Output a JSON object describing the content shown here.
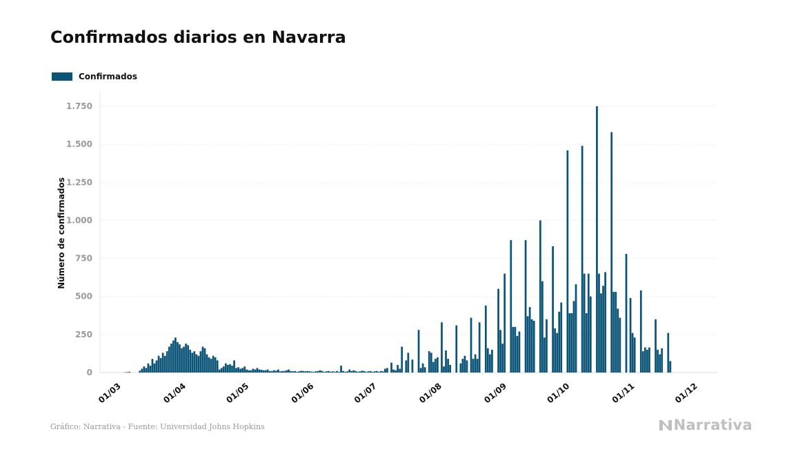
{
  "title": "Confirmados diarios en Navarra",
  "legend": {
    "label": "Confirmados",
    "color": "#0b5477"
  },
  "footer": {
    "source": "Gráfico: Narrativa - Fuente: Universidad Johns Hopkins",
    "brand": "Narrativa"
  },
  "chart_data": {
    "type": "bar",
    "title": "Confirmados diarios en Navarra",
    "xlabel": "",
    "ylabel": "Número de confirmados",
    "ylim": [
      0,
      1750
    ],
    "yticks": [
      0,
      250,
      500,
      750,
      1000,
      1250,
      1500,
      1750
    ],
    "ytick_labels": [
      "0",
      "250",
      "500",
      "750",
      "1.000",
      "1.250",
      "1.500",
      "1.750"
    ],
    "grid": "horizontal",
    "legend_position": "top-left",
    "x_start": "2020-02-24",
    "xtick_labels": [
      "01/03",
      "01/04",
      "01/05",
      "01/06",
      "01/07",
      "01/08",
      "01/09",
      "01/10",
      "01/11",
      "01/12"
    ],
    "series": [
      {
        "name": "Confirmados",
        "color": "#0b5477",
        "values": [
          0,
          0,
          0,
          0,
          0,
          0,
          0,
          0,
          0,
          0,
          0,
          2,
          3,
          5,
          0,
          0,
          0,
          0,
          12,
          25,
          40,
          30,
          60,
          45,
          90,
          60,
          80,
          110,
          95,
          130,
          110,
          140,
          170,
          190,
          210,
          230,
          200,
          185,
          160,
          170,
          190,
          180,
          150,
          130,
          140,
          120,
          110,
          140,
          170,
          160,
          120,
          100,
          90,
          110,
          100,
          80,
          20,
          30,
          40,
          60,
          50,
          55,
          45,
          80,
          30,
          35,
          25,
          30,
          40,
          20,
          15,
          15,
          25,
          20,
          30,
          20,
          18,
          15,
          15,
          20,
          10,
          10,
          15,
          12,
          20,
          8,
          10,
          10,
          15,
          20,
          10,
          8,
          10,
          5,
          8,
          12,
          10,
          8,
          10,
          8,
          6,
          5,
          8,
          10,
          15,
          10,
          5,
          8,
          10,
          6,
          8,
          5,
          10,
          5,
          45,
          10,
          5,
          8,
          20,
          10,
          15,
          10,
          5,
          8,
          12,
          10,
          5,
          8,
          10,
          5,
          8,
          10,
          5,
          10,
          8,
          25,
          30,
          0,
          65,
          20,
          15,
          50,
          25,
          170,
          0,
          80,
          130,
          0,
          85,
          0,
          0,
          280,
          30,
          60,
          35,
          0,
          140,
          130,
          70,
          90,
          100,
          0,
          330,
          40,
          145,
          90,
          50,
          0,
          0,
          310,
          0,
          60,
          90,
          110,
          80,
          0,
          360,
          90,
          120,
          90,
          330,
          0,
          0,
          440,
          160,
          120,
          150,
          0,
          0,
          550,
          280,
          190,
          650,
          0,
          0,
          870,
          300,
          300,
          240,
          270,
          0,
          0,
          870,
          370,
          430,
          350,
          340,
          0,
          0,
          1000,
          600,
          230,
          350,
          0,
          0,
          830,
          290,
          260,
          400,
          460,
          0,
          0,
          1460,
          390,
          390,
          470,
          580,
          0,
          0,
          1490,
          650,
          390,
          650,
          500,
          0,
          0,
          1750,
          650,
          520,
          570,
          660,
          0,
          0,
          1580,
          530,
          530,
          420,
          360,
          0,
          0,
          780,
          0,
          490,
          260,
          230,
          0,
          0,
          540,
          140,
          165,
          150,
          165,
          0,
          0,
          350,
          150,
          120,
          160,
          0,
          0,
          260,
          75
        ]
      }
    ]
  }
}
